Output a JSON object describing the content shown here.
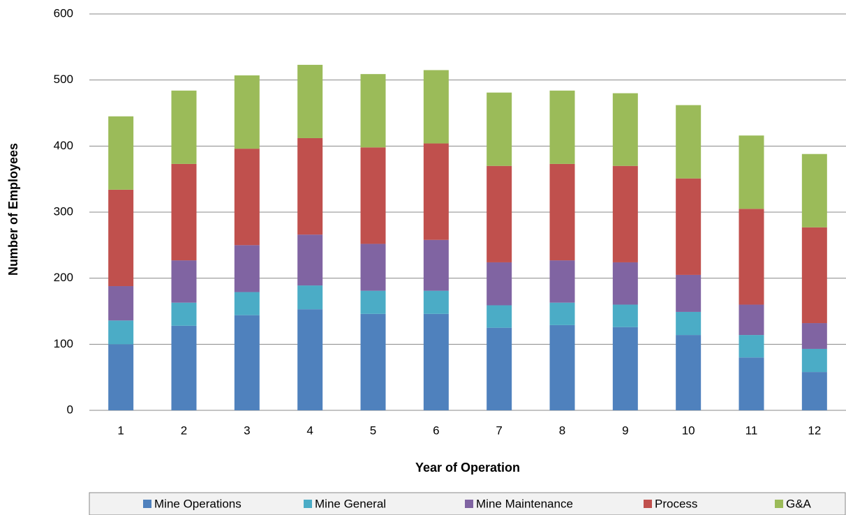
{
  "chart_data": {
    "type": "stacked_bar",
    "x_label": "Year of Operation",
    "y_label": "Number of Employees",
    "categories": [
      "1",
      "2",
      "3",
      "4",
      "5",
      "6",
      "7",
      "8",
      "9",
      "10",
      "11",
      "12"
    ],
    "series": [
      {
        "name": "Mine Operations",
        "color": "#4f81bd",
        "values": [
          100,
          128,
          144,
          153,
          146,
          146,
          125,
          129,
          126,
          114,
          80,
          58
        ]
      },
      {
        "name": "Mine General",
        "color": "#4bacc6",
        "values": [
          36,
          35,
          35,
          36,
          35,
          35,
          34,
          34,
          34,
          35,
          34,
          35
        ]
      },
      {
        "name": "Mine Maintenance",
        "color": "#8064a2",
        "values": [
          52,
          64,
          71,
          77,
          71,
          77,
          65,
          64,
          64,
          56,
          46,
          39
        ]
      },
      {
        "name": "Process",
        "color": "#c0504d",
        "values": [
          146,
          146,
          146,
          146,
          146,
          146,
          146,
          146,
          146,
          146,
          145,
          145
        ]
      },
      {
        "name": "G&A",
        "color": "#9bbb59",
        "values": [
          111,
          111,
          111,
          111,
          111,
          111,
          111,
          111,
          110,
          111,
          111,
          111
        ]
      }
    ],
    "ylim": [
      0,
      600
    ],
    "yticks": [
      0,
      100,
      200,
      300,
      400,
      500,
      600
    ],
    "grid": true,
    "legend": "bottom"
  }
}
